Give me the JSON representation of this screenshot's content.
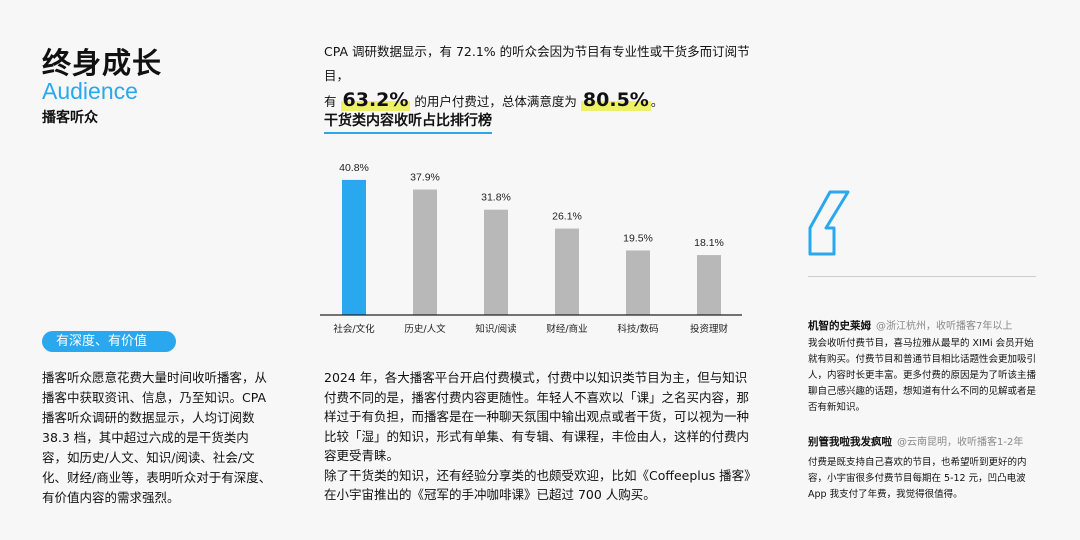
{
  "header": {
    "title": "终身成长",
    "title_en": "Audience",
    "subtitle": "播客听众"
  },
  "left": {
    "tag": "有深度、有价值",
    "paragraph": "播客听众愿意花费大量时间收听播客，从播客中获取资讯、信息，乃至知识。CPA 播客听众调研的数据显示，人均订阅数 38.3 档，其中超过六成的是干货类内容，如历史/人文、知识/阅读、社会/文化、财经/商业等，表明听众对于有深度、有价值内容的需求强烈。"
  },
  "intro": {
    "line1": "CPA 调研数据显示，有 72.1% 的听众会因为节目有专业性或干货多而订阅节目，",
    "pre": "有",
    "stat1": "63.2%",
    "mid": "的用户付费过，总体满意度为",
    "stat2": "80.5%",
    "end": "。"
  },
  "chart_title": "干货类内容收听占比排行榜",
  "chart_data": {
    "type": "bar",
    "categories": [
      "社会/文化",
      "历史/人文",
      "知识/阅读",
      "财经/商业",
      "科技/数码",
      "投资理财"
    ],
    "values": [
      40.8,
      37.9,
      31.8,
      26.1,
      19.5,
      18.1
    ],
    "labels": [
      "40.8%",
      "37.9%",
      "31.8%",
      "26.1%",
      "19.5%",
      "18.1%"
    ],
    "title": "干货类内容收听占比排行榜",
    "ylim": [
      0,
      45
    ],
    "highlight_color": "#29a8f0",
    "bar_color": "#b8b8b8"
  },
  "bottom": {
    "p1": "2024 年，各大播客平台开启付费模式，付费中以知识类节目为主，但与知识付费不同的是，播客付费内容更随性。年轻人不喜欢以「课」之名买内容，那样过于有负担，而播客是在一种聊天氛围中输出观点或者干货，可以视为一种比较「湿」的知识，形式有单集、有专辑、有课程，丰俭由人，这样的付费内容更受青睐。",
    "p2": "除了干货类的知识，还有经验分享类的也颇受欢迎，比如《Coffeeplus 播客》在小宇宙推出的《冠军的手冲咖啡课》已超过 700 人购买。"
  },
  "comments": [
    {
      "name": "机智的史莱姆",
      "meta": "@浙江杭州，收听播客7年以上",
      "text": "我会收听付费节目，喜马拉雅从最早的 XIMi 会员开始就有购买。付费节目和普通节目相比话题性会更加吸引人，内容时长更丰富。更多付费的原因是为了听该主播聊自己感兴趣的话题，想知道有什么不同的见解或者是否有新知识。"
    },
    {
      "name": "别管我啦我发疯啦",
      "meta": "@云南昆明，收听播客1-2年",
      "text": "付费是既支持自己喜欢的节目，也希望听到更好的内容，小宇宙很多付费节目每期在 5-12 元，凹凸电波 App 我支付了年费，我觉得很值得。"
    }
  ]
}
